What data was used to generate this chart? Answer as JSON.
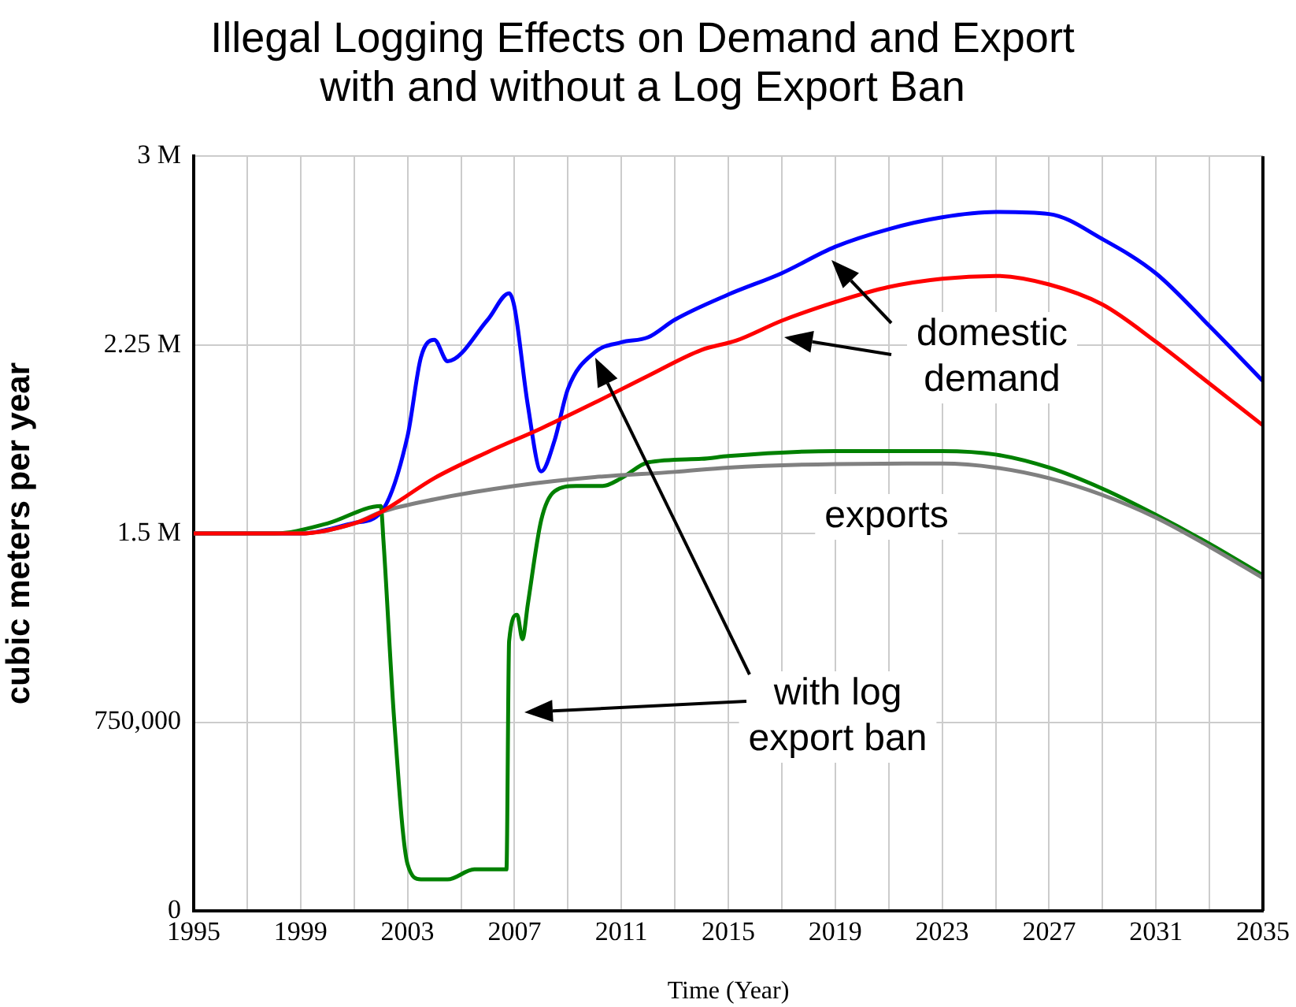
{
  "chart_data": {
    "type": "line",
    "title": "Illegal Logging Effects on Demand and Export\nwith and without a Log Export Ban",
    "xlabel": "Time (Year)",
    "ylabel": "cubic meters per year",
    "xlim": [
      1995,
      2035
    ],
    "xticks": [
      1995,
      {
        "value": 1997,
        "label": null
      },
      1999,
      {
        "value": 2001,
        "label": null
      },
      2003,
      {
        "value": 2005,
        "label": null
      },
      2007,
      {
        "value": 2009,
        "label": null
      },
      2011,
      {
        "value": 2013,
        "label": null
      },
      2015,
      {
        "value": 2017,
        "label": null
      },
      2019,
      {
        "value": 2021,
        "label": null
      },
      2023,
      {
        "value": 2025,
        "label": null
      },
      2027,
      {
        "value": 2029,
        "label": null
      },
      2031,
      {
        "value": 2033,
        "label": null
      },
      2035
    ],
    "ylim": [
      0,
      3000000
    ],
    "yticks": [
      {
        "value": 0,
        "label": "0"
      },
      {
        "value": 750000,
        "label": "750,000"
      },
      {
        "value": 1500000,
        "label": "1.5 M"
      },
      {
        "value": 2250000,
        "label": "2.25 M"
      },
      {
        "value": 3000000,
        "label": "3 M"
      }
    ],
    "grid": true,
    "legend": false,
    "marker": "none",
    "line_style": "solid",
    "series": [
      {
        "color": "#ff0000",
        "x": [
          1995,
          1999,
          2001,
          2002,
          2004,
          2006,
          2008,
          2010,
          2012,
          2014,
          2015.3,
          2017,
          2019,
          2021,
          2023,
          2025,
          2027,
          2029,
          2031,
          2033,
          2035
        ],
        "values": [
          1500000,
          1500000,
          1540000,
          1585000,
          1720000,
          1824000,
          1918000,
          2020000,
          2127000,
          2230000,
          2267000,
          2346000,
          2420000,
          2480000,
          2513000,
          2524000,
          2490000,
          2410000,
          2262000,
          2096000,
          1930000
        ]
      },
      {
        "color": "#808080",
        "x": [
          1995,
          1999,
          2001,
          2002,
          2004,
          2007,
          2010,
          2013,
          2015,
          2019,
          2023,
          2025,
          2027,
          2029,
          2031,
          2033,
          2035
        ],
        "values": [
          1500000,
          1500000,
          1540000,
          1585000,
          1636000,
          1689000,
          1724000,
          1745000,
          1762000,
          1776000,
          1778000,
          1762000,
          1720000,
          1653000,
          1563000,
          1448000,
          1323000
        ]
      },
      {
        "color": "#008000",
        "x": [
          1995,
          1998,
          2000,
          2002,
          2002.1,
          2002.5,
          2003,
          2003.5,
          2004.5,
          2005.5,
          2006.7,
          2006.8,
          2007.1,
          2007.3,
          2007.5,
          2008,
          2008.5,
          2009.3,
          2010.3,
          2011,
          2012,
          2014,
          2015,
          2019,
          2023,
          2025,
          2027,
          2029,
          2031,
          2033,
          2035
        ],
        "values": [
          1500000,
          1500000,
          1540000,
          1609000,
          1470000,
          760000,
          186000,
          125000,
          125000,
          165000,
          165000,
          1073000,
          1177000,
          1080000,
          1219000,
          1553000,
          1668000,
          1689000,
          1689000,
          1720000,
          1783000,
          1797000,
          1808000,
          1828000,
          1828000,
          1814000,
          1762000,
          1678000,
          1574000,
          1459000,
          1334000
        ]
      },
      {
        "color": "#0000ff",
        "x": [
          1995,
          1999,
          2001,
          2002,
          2003,
          2003.5,
          2004,
          2004.5,
          2006,
          2006.8,
          2007,
          2007.5,
          2008,
          2008.5,
          2009,
          2010,
          2011,
          2012,
          2013,
          2015,
          2017,
          2019,
          2021,
          2023,
          2025,
          2027,
          2029,
          2031,
          2033,
          2035
        ],
        "values": [
          1500000,
          1500000,
          1542000,
          1584000,
          1887000,
          2200000,
          2270000,
          2185000,
          2350000,
          2455000,
          2400000,
          2010000,
          1747000,
          1870000,
          2075000,
          2220000,
          2260000,
          2280000,
          2350000,
          2450000,
          2535000,
          2640000,
          2710000,
          2757000,
          2778000,
          2770000,
          2670000,
          2534000,
          2325000,
          2106000
        ]
      }
    ],
    "annotations": [
      "domestic\ndemand",
      "exports",
      "with log\nexport ban"
    ]
  }
}
